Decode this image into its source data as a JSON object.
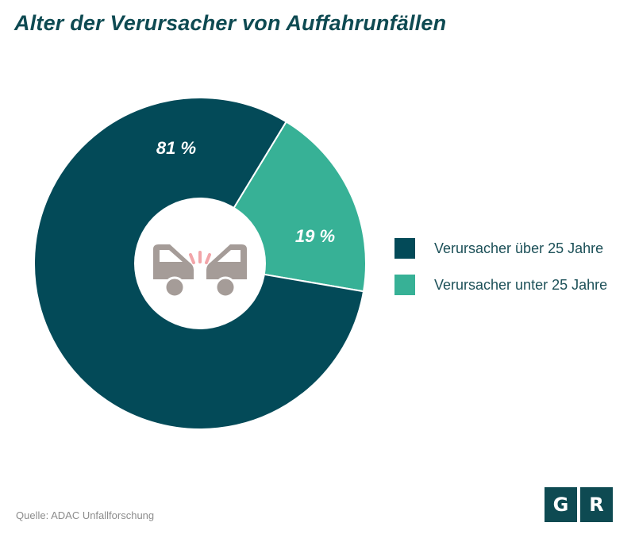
{
  "chart_data": {
    "type": "pie",
    "title": "Alter der Verursacher von Auffahrunfällen",
    "series": [
      {
        "name": "Verursacher über 25 Jahre",
        "value": 81,
        "label": "81 %",
        "color": "#034a58"
      },
      {
        "name": "Verursacher unter 25 Jahre",
        "value": 19,
        "label": "19 %",
        "color": "#37b196"
      }
    ],
    "donut": true,
    "legend_position": "right",
    "center_icon": "car-collision-icon"
  },
  "source": "Quelle: ADAC Unfallforschung",
  "logo": {
    "letters": [
      "G",
      "R"
    ],
    "color": "#0e4a52"
  }
}
